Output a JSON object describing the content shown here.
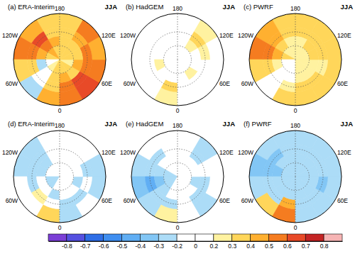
{
  "chart_data": {
    "type": "heatmap",
    "lat_edges": [
      40,
      55,
      65,
      75,
      90
    ],
    "lon_edges": [
      -180,
      -150,
      -120,
      -90,
      -60,
      -30,
      0,
      30,
      60,
      90,
      120,
      150,
      180
    ],
    "graticule_lats": [
      60,
      75
    ],
    "graticule_lons": [
      0,
      180
    ],
    "lon_labels": [
      180,
      {
        "value": -120,
        "label": "120W"
      },
      {
        "value": 120,
        "label": "120E"
      },
      {
        "value": -60,
        "label": "60W"
      },
      {
        "value": 60,
        "label": "60E"
      },
      0
    ],
    "colorbar": {
      "ticks": [
        -0.8,
        -0.7,
        -0.6,
        -0.5,
        -0.4,
        -0.3,
        -0.2,
        0,
        0.2,
        0.3,
        0.4,
        0.5,
        0.6,
        0.7,
        0.8
      ],
      "colors": [
        "#7b3fd6",
        "#5550e0",
        "#2e6ee6",
        "#3f8ef0",
        "#60aef4",
        "#82c6f5",
        "#acdcf7",
        "#ffffff",
        "#ffffff",
        "#fff2a0",
        "#ffd65a",
        "#ffb030",
        "#f57c20",
        "#e84a28",
        "#c42424",
        "#f6b4b4"
      ]
    },
    "panels": [
      {
        "label": "(a) ERA-Interim",
        "season": "JJA",
        "cells": [
          [
            0.3,
            0.4,
            0.5,
            0.3,
            -0.25,
            0.4,
            0.5,
            0.6,
            0.5,
            0.4,
            0.5,
            0.3
          ],
          [
            0.3,
            0.6,
            0.5,
            0.3,
            0.1,
            0.3,
            0.5,
            0.6,
            0.5,
            0.5,
            0.4,
            0.3
          ],
          [
            0.4,
            0.5,
            0.4,
            -0.25,
            0.1,
            0.3,
            0.4,
            0.3,
            0.4,
            0.3,
            0.3,
            0.3
          ],
          [
            0.3,
            0.4,
            0.3,
            0.1,
            0.2,
            0.3,
            0.3,
            0.3,
            0.2,
            0.3,
            0.3,
            0.3
          ]
        ]
      },
      {
        "label": "(b) HadGEM",
        "season": "JJA",
        "cells": [
          [
            0,
            0.1,
            0,
            0,
            0,
            0.25,
            0.1,
            0,
            0.1,
            0.1,
            0.25,
            0.1
          ],
          [
            0.1,
            0,
            0,
            0,
            0.1,
            0.3,
            0.1,
            0.1,
            0,
            0.25,
            0.3,
            0.1
          ],
          [
            0,
            0.1,
            0,
            0.25,
            0,
            0.1,
            0.1,
            0.25,
            0.1,
            0.1,
            0.25,
            0
          ],
          [
            0,
            0,
            0.1,
            0,
            0,
            0,
            0.1,
            0,
            0.1,
            0,
            0.1,
            0
          ]
        ]
      },
      {
        "label": "(c) PWRF",
        "season": "JJA",
        "cells": [
          [
            0.3,
            0.4,
            0.5,
            0.3,
            0.1,
            0.3,
            0.3,
            0.3,
            0.3,
            0.3,
            0.3,
            0.3
          ],
          [
            0.3,
            0.4,
            0.5,
            0.3,
            0.1,
            0.2,
            0.3,
            0.3,
            0.25,
            0.3,
            0.35,
            0.3
          ],
          [
            0.25,
            0.3,
            0.4,
            0.25,
            0.1,
            0.1,
            0.25,
            0.2,
            0.25,
            0.3,
            0.3,
            0.25
          ],
          [
            0.25,
            0.25,
            0.3,
            0.1,
            0.1,
            0.1,
            0.2,
            0.25,
            0.2,
            0.25,
            0.25,
            0.25
          ]
        ]
      },
      {
        "label": "(d) ERA-Interim",
        "season": "JJA",
        "cells": [
          [
            -0.1,
            -0.25,
            -0.3,
            -0.2,
            0.1,
            0.3,
            -0.25,
            -0.1,
            -0.25,
            -0.25,
            -0.1,
            -0.1
          ],
          [
            -0.1,
            -0.25,
            -0.3,
            -0.25,
            0.25,
            -0.1,
            -0.25,
            -0.25,
            -0.1,
            -0.25,
            -0.1,
            0
          ],
          [
            0,
            -0.25,
            -0.25,
            0.1,
            0,
            -0.25,
            -0.1,
            0,
            -0.25,
            -0.1,
            0,
            0
          ],
          [
            0,
            0,
            -0.1,
            -0.25,
            -0.25,
            0,
            0,
            0,
            0,
            0,
            0,
            0
          ]
        ]
      },
      {
        "label": "(e) HadGEM",
        "season": "JJA",
        "cells": [
          [
            -0.1,
            -0.1,
            -0.3,
            -0.4,
            -0.3,
            0.25,
            -0.1,
            -0.25,
            0,
            -0.1,
            -0.25,
            0
          ],
          [
            0,
            -0.25,
            -0.3,
            -0.5,
            -0.3,
            -0.25,
            -0.1,
            -0.25,
            -0.25,
            0,
            -0.25,
            0
          ],
          [
            0,
            -0.1,
            -0.25,
            -0.4,
            -0.3,
            -0.1,
            0,
            -0.1,
            -0.25,
            0,
            0,
            0
          ],
          [
            0,
            0,
            -0.25,
            -0.3,
            -0.25,
            -0.1,
            0,
            0,
            0,
            0,
            0,
            0
          ]
        ]
      },
      {
        "label": "(f) PWRF",
        "season": "JJA",
        "cells": [
          [
            -0.3,
            -0.3,
            -0.35,
            -0.3,
            0.3,
            0.5,
            -0.25,
            -0.3,
            -0.3,
            -0.25,
            -0.3,
            -0.3
          ],
          [
            -0.3,
            -0.35,
            -0.4,
            -0.3,
            -0.25,
            0.4,
            -0.3,
            -0.3,
            -0.35,
            -0.3,
            -0.3,
            -0.3
          ],
          [
            -0.25,
            -0.3,
            -0.35,
            -0.3,
            -0.3,
            -0.25,
            -0.25,
            -0.3,
            -0.3,
            -0.3,
            -0.25,
            -0.25
          ],
          [
            -0.25,
            -0.25,
            -0.3,
            -0.25,
            -0.25,
            -0.25,
            -0.25,
            -0.3,
            -0.25,
            -0.25,
            -0.25,
            -0.25
          ]
        ]
      }
    ]
  }
}
